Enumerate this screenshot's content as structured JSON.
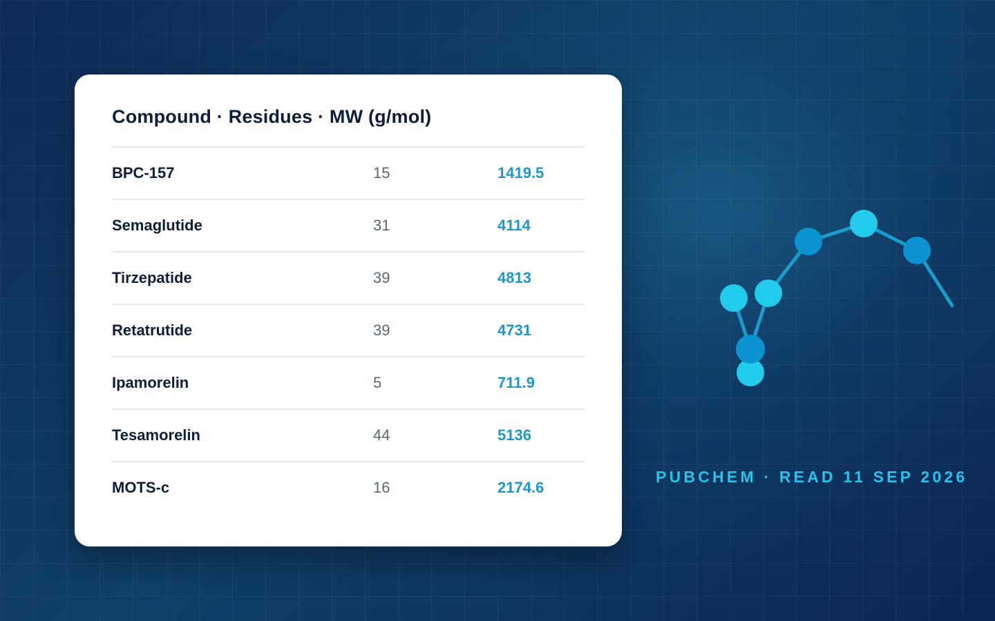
{
  "table": {
    "title": "Compound · Residues · MW (g/mol)",
    "rows": [
      {
        "compound": "BPC-157",
        "residues": "15",
        "mw": "1419.5"
      },
      {
        "compound": "Semaglutide",
        "residues": "31",
        "mw": "4114"
      },
      {
        "compound": "Tirzepatide",
        "residues": "39",
        "mw": "4813"
      },
      {
        "compound": "Retatrutide",
        "residues": "39",
        "mw": "4731"
      },
      {
        "compound": "Ipamorelin",
        "residues": "5",
        "mw": "711.9"
      },
      {
        "compound": "Tesamorelin",
        "residues": "44",
        "mw": "5136"
      },
      {
        "compound": "MOTS-c",
        "residues": "16",
        "mw": "2174.6"
      }
    ]
  },
  "source_label": "PUBCHEM · READ 11 SEP 2026",
  "colors": {
    "background": "#0c2a56",
    "card": "#ffffff",
    "text_dark": "#0d1e3b",
    "text_muted": "#5c6573",
    "accent": "#1c97c9",
    "cyan": "#27c3ea",
    "node_light": "#22cbeb",
    "node_dark": "#0c93d1",
    "bond": "#1a9ccc"
  }
}
